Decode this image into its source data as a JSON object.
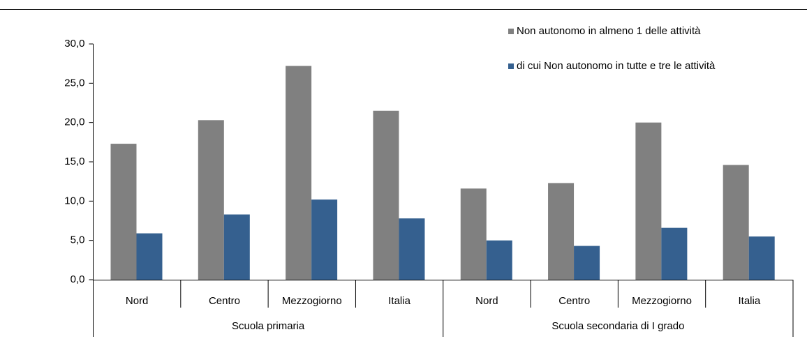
{
  "chart_data": {
    "type": "bar",
    "groups": [
      {
        "name": "Scuola primaria",
        "categories": [
          "Nord",
          "Centro",
          "Mezzogiorno",
          "Italia"
        ]
      },
      {
        "name": "Scuola secondaria di I grado",
        "categories": [
          "Nord",
          "Centro",
          "Mezzogiorno",
          "Italia"
        ]
      }
    ],
    "series": [
      {
        "name": "Non autonomo in almeno 1 delle attività",
        "color": "#808080",
        "values": [
          17.3,
          20.3,
          27.2,
          21.5,
          11.6,
          12.3,
          20.0,
          14.6
        ]
      },
      {
        "name": "di cui Non autonomo in tutte e tre le attività",
        "color": "#35608f",
        "values": [
          5.9,
          8.3,
          10.2,
          7.8,
          5.0,
          4.3,
          6.6,
          5.5
        ]
      }
    ],
    "ylim": [
      0,
      30
    ],
    "yticks": [
      {
        "value": 0,
        "label": "0,0"
      },
      {
        "value": 5,
        "label": "5,0"
      },
      {
        "value": 10,
        "label": "10,0"
      },
      {
        "value": 15,
        "label": "15,0"
      },
      {
        "value": 20,
        "label": "20,0"
      },
      {
        "value": 25,
        "label": "25,0"
      },
      {
        "value": 30,
        "label": "30,0"
      }
    ],
    "legend": "top-right"
  }
}
